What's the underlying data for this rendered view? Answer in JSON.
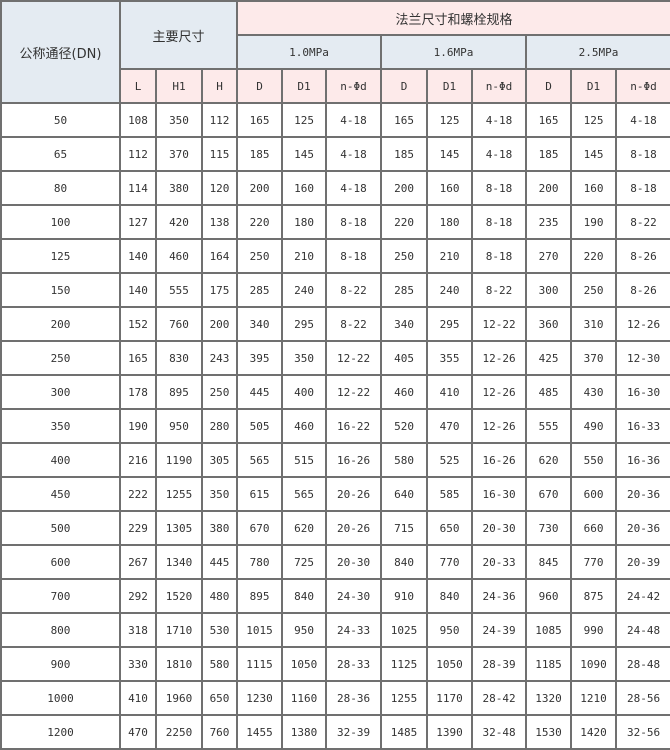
{
  "header": {
    "dn_label": "公称通径(DN)",
    "main_dims_label": "主要尺寸",
    "flange_label": "法兰尺寸和螺栓规格",
    "pressures": [
      "1.0MPa",
      "1.6MPa",
      "2.5MPa"
    ],
    "main_cols": [
      "L",
      "H1",
      "H"
    ],
    "flange_cols": [
      "D",
      "D1",
      "n-Φd"
    ]
  },
  "colors": {
    "header_blue": "#e4ebf2",
    "header_pink": "#fdeaea",
    "border": "#707070"
  },
  "rows": [
    [
      "50",
      "108",
      "350",
      "112",
      "165",
      "125",
      "4-18",
      "165",
      "125",
      "4-18",
      "165",
      "125",
      "4-18"
    ],
    [
      "65",
      "112",
      "370",
      "115",
      "185",
      "145",
      "4-18",
      "185",
      "145",
      "4-18",
      "185",
      "145",
      "8-18"
    ],
    [
      "80",
      "114",
      "380",
      "120",
      "200",
      "160",
      "4-18",
      "200",
      "160",
      "8-18",
      "200",
      "160",
      "8-18"
    ],
    [
      "100",
      "127",
      "420",
      "138",
      "220",
      "180",
      "8-18",
      "220",
      "180",
      "8-18",
      "235",
      "190",
      "8-22"
    ],
    [
      "125",
      "140",
      "460",
      "164",
      "250",
      "210",
      "8-18",
      "250",
      "210",
      "8-18",
      "270",
      "220",
      "8-26"
    ],
    [
      "150",
      "140",
      "555",
      "175",
      "285",
      "240",
      "8-22",
      "285",
      "240",
      "8-22",
      "300",
      "250",
      "8-26"
    ],
    [
      "200",
      "152",
      "760",
      "200",
      "340",
      "295",
      "8-22",
      "340",
      "295",
      "12-22",
      "360",
      "310",
      "12-26"
    ],
    [
      "250",
      "165",
      "830",
      "243",
      "395",
      "350",
      "12-22",
      "405",
      "355",
      "12-26",
      "425",
      "370",
      "12-30"
    ],
    [
      "300",
      "178",
      "895",
      "250",
      "445",
      "400",
      "12-22",
      "460",
      "410",
      "12-26",
      "485",
      "430",
      "16-30"
    ],
    [
      "350",
      "190",
      "950",
      "280",
      "505",
      "460",
      "16-22",
      "520",
      "470",
      "12-26",
      "555",
      "490",
      "16-33"
    ],
    [
      "400",
      "216",
      "1190",
      "305",
      "565",
      "515",
      "16-26",
      "580",
      "525",
      "16-26",
      "620",
      "550",
      "16-36"
    ],
    [
      "450",
      "222",
      "1255",
      "350",
      "615",
      "565",
      "20-26",
      "640",
      "585",
      "16-30",
      "670",
      "600",
      "20-36"
    ],
    [
      "500",
      "229",
      "1305",
      "380",
      "670",
      "620",
      "20-26",
      "715",
      "650",
      "20-30",
      "730",
      "660",
      "20-36"
    ],
    [
      "600",
      "267",
      "1340",
      "445",
      "780",
      "725",
      "20-30",
      "840",
      "770",
      "20-33",
      "845",
      "770",
      "20-39"
    ],
    [
      "700",
      "292",
      "1520",
      "480",
      "895",
      "840",
      "24-30",
      "910",
      "840",
      "24-36",
      "960",
      "875",
      "24-42"
    ],
    [
      "800",
      "318",
      "1710",
      "530",
      "1015",
      "950",
      "24-33",
      "1025",
      "950",
      "24-39",
      "1085",
      "990",
      "24-48"
    ],
    [
      "900",
      "330",
      "1810",
      "580",
      "1115",
      "1050",
      "28-33",
      "1125",
      "1050",
      "28-39",
      "1185",
      "1090",
      "28-48"
    ],
    [
      "1000",
      "410",
      "1960",
      "650",
      "1230",
      "1160",
      "28-36",
      "1255",
      "1170",
      "28-42",
      "1320",
      "1210",
      "28-56"
    ],
    [
      "1200",
      "470",
      "2250",
      "760",
      "1455",
      "1380",
      "32-39",
      "1485",
      "1390",
      "32-48",
      "1530",
      "1420",
      "32-56"
    ]
  ]
}
